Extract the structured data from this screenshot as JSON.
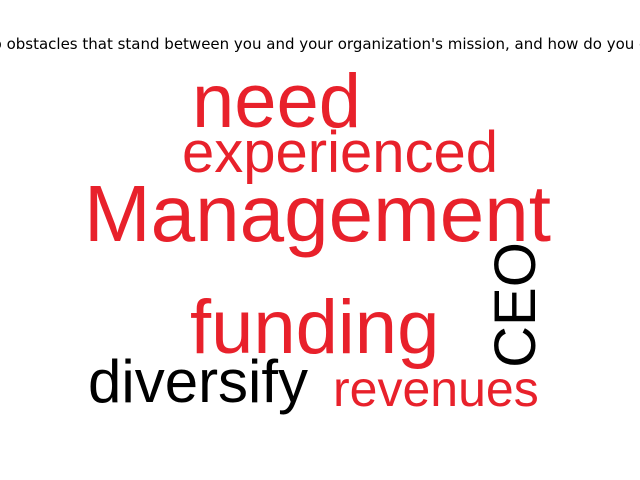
{
  "question": "What are the top obstacles that stand between you and your organization's mission, and how do you overcome them?",
  "words": {
    "need": {
      "text": "need",
      "color": "#e8212b"
    },
    "experienced": {
      "text": "experienced",
      "color": "#e8212b"
    },
    "management": {
      "text": "Management",
      "color": "#e8212b"
    },
    "funding": {
      "text": "funding",
      "color": "#e8212b"
    },
    "ceo": {
      "text": "CEO",
      "color": "#000000"
    },
    "diversify": {
      "text": "diversify",
      "color": "#000000"
    },
    "revenues": {
      "text": "revenues",
      "color": "#e8212b"
    }
  }
}
